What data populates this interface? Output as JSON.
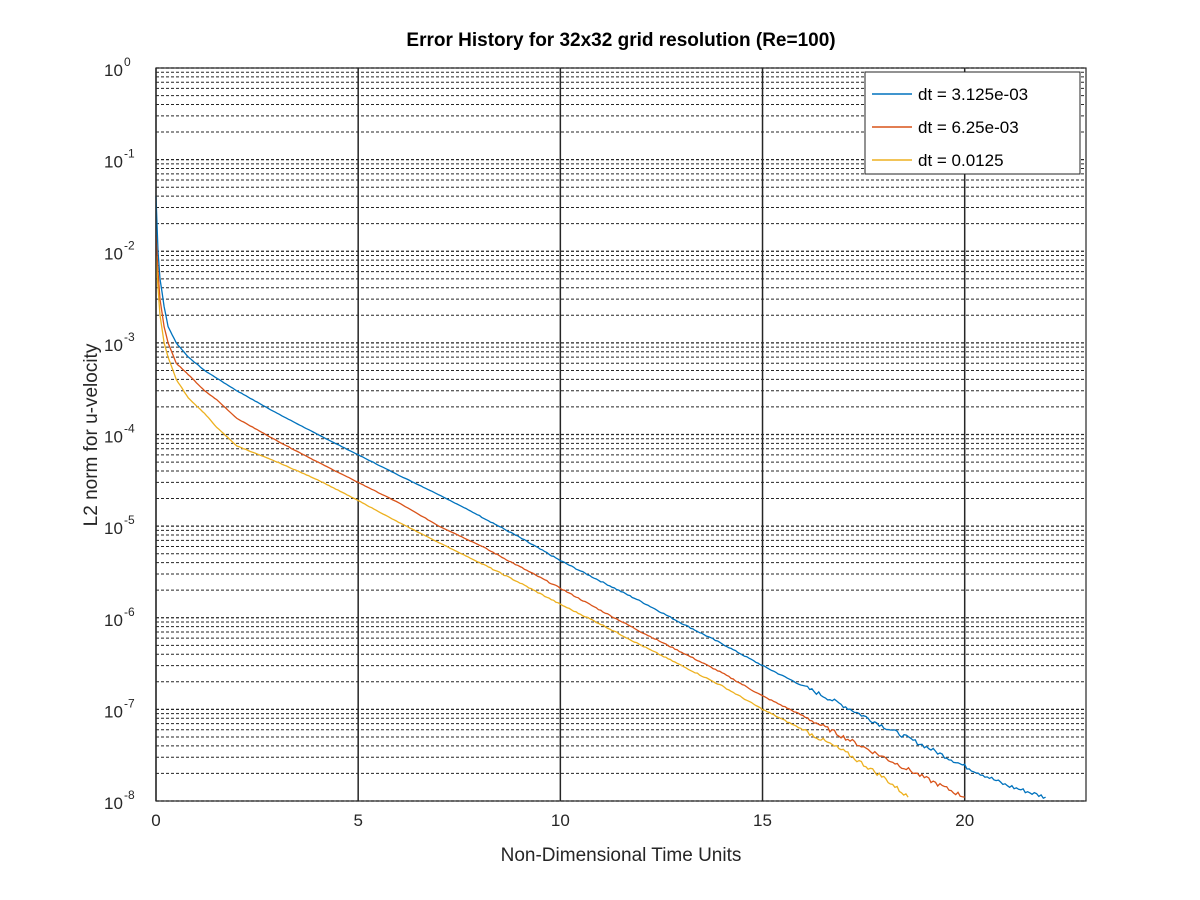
{
  "chart_data": {
    "type": "line",
    "title": "Error History for 32x32 grid resolution (Re=100)",
    "xlabel": "Non-Dimensional Time Units",
    "ylabel": "L2 norm for u-velocity",
    "xlim": [
      0,
      23
    ],
    "ylim": [
      1e-08,
      1
    ],
    "yscale": "log",
    "grid": "major and minor, dotted",
    "legend_position": "top-right",
    "xticks": [
      0,
      5,
      10,
      15,
      20
    ],
    "xtick_labels": [
      "0",
      "5",
      "10",
      "15",
      "20"
    ],
    "yticks": [
      -8,
      -7,
      -6,
      -5,
      -4,
      -3,
      -2,
      -1,
      0
    ],
    "ytick_labels": [
      {
        "base": "10",
        "exp": "-8"
      },
      {
        "base": "10",
        "exp": "-7"
      },
      {
        "base": "10",
        "exp": "-6"
      },
      {
        "base": "10",
        "exp": "-5"
      },
      {
        "base": "10",
        "exp": "-4"
      },
      {
        "base": "10",
        "exp": "-3"
      },
      {
        "base": "10",
        "exp": "-2"
      },
      {
        "base": "10",
        "exp": "-1"
      },
      {
        "base": "10",
        "exp": "0"
      }
    ],
    "series": [
      {
        "name": "dt = 3.125e-03",
        "color": "#0072BD",
        "x": [
          0,
          0.05,
          0.1,
          0.2,
          0.3,
          0.5,
          0.8,
          1.2,
          2,
          3,
          4,
          5,
          6,
          7,
          8,
          9,
          10,
          11,
          12,
          13,
          14,
          15,
          16,
          17,
          18,
          19,
          20,
          21,
          22
        ],
        "y": [
          0.04,
          0.01,
          0.005,
          0.0025,
          0.0015,
          0.001,
          0.0007,
          0.0005,
          0.0003,
          0.00017,
          0.0001,
          6e-05,
          3.6e-05,
          2.2e-05,
          1.3e-05,
          7.5e-06,
          4.2e-06,
          2.5e-06,
          1.5e-06,
          8.7e-07,
          5.2e-07,
          3e-07,
          1.8e-07,
          1.1e-07,
          6.5e-08,
          4e-08,
          2.4e-08,
          1.5e-08,
          1.1e-08
        ]
      },
      {
        "name": "dt = 6.25e-03",
        "color": "#D95319",
        "x": [
          0,
          0.05,
          0.1,
          0.2,
          0.3,
          0.5,
          0.8,
          1.2,
          1.5,
          2,
          3,
          4,
          5,
          6,
          7,
          8,
          9,
          10,
          11,
          12,
          13,
          14,
          15,
          16,
          17,
          18,
          19,
          20
        ],
        "y": [
          0.015,
          0.006,
          0.003,
          0.0015,
          0.001,
          0.0006,
          0.00045,
          0.0003,
          0.00024,
          0.00015,
          8.5e-05,
          5e-05,
          3e-05,
          1.8e-05,
          1e-05,
          6.2e-06,
          3.6e-06,
          2.1e-06,
          1.2e-06,
          7e-07,
          4.2e-07,
          2.5e-07,
          1.4e-07,
          8.5e-08,
          5e-08,
          3e-08,
          1.8e-08,
          1.1e-08
        ]
      },
      {
        "name": "dt = 0.0125",
        "color": "#EDB120",
        "x": [
          0,
          0.05,
          0.1,
          0.2,
          0.3,
          0.5,
          0.8,
          1.2,
          1.5,
          2,
          3,
          4,
          5,
          6,
          7,
          8,
          9,
          10,
          11,
          12,
          13,
          14,
          15,
          16,
          17,
          18,
          18.6
        ],
        "y": [
          0.009,
          0.004,
          0.002,
          0.001,
          0.0007,
          0.0004,
          0.00025,
          0.00017,
          0.00012,
          7.5e-05,
          5e-05,
          3.2e-05,
          1.9e-05,
          1.1e-05,
          6.6e-06,
          4e-06,
          2.4e-06,
          1.4e-06,
          8.5e-07,
          5e-07,
          3e-07,
          1.8e-07,
          1e-07,
          6e-08,
          3.5e-08,
          1.8e-08,
          1.1e-08
        ]
      }
    ]
  }
}
